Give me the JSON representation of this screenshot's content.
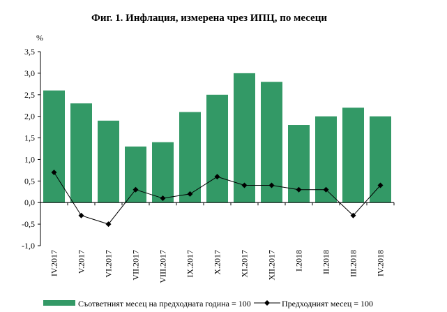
{
  "chart_data": {
    "type": "bar",
    "title": "Фиг. 1. Инфлация, измерена чрез ИПЦ, по месеци",
    "ylabel": "%",
    "ylim": [
      -1.0,
      3.5
    ],
    "yticks": [
      "-1,0",
      "-0,5",
      "0,0",
      "0,5",
      "1,0",
      "1,5",
      "2,0",
      "2,5",
      "3,0",
      "3,5"
    ],
    "categories": [
      "IV.2017",
      "V.2017",
      "VI.2017",
      "VII.2017",
      "VIII.2017",
      "IX.2017",
      "X.2017",
      "XI.2017",
      "XII.2017",
      "I.2018",
      "II.2018",
      "III.2018",
      "IV.2018"
    ],
    "series": [
      {
        "name": "Съответният месец на предходната година = 100",
        "type": "bar",
        "color": "#339966",
        "values": [
          2.6,
          2.3,
          1.9,
          1.3,
          1.4,
          2.1,
          2.5,
          3.0,
          2.8,
          1.8,
          2.0,
          2.2,
          2.0
        ]
      },
      {
        "name": "Предходният месец = 100",
        "type": "line",
        "marker": "diamond",
        "color": "#000000",
        "values": [
          0.7,
          -0.3,
          -0.5,
          0.3,
          0.1,
          0.2,
          0.6,
          0.4,
          0.4,
          0.3,
          0.3,
          -0.3,
          0.4
        ]
      }
    ],
    "grid": false,
    "legend": "bottom"
  }
}
